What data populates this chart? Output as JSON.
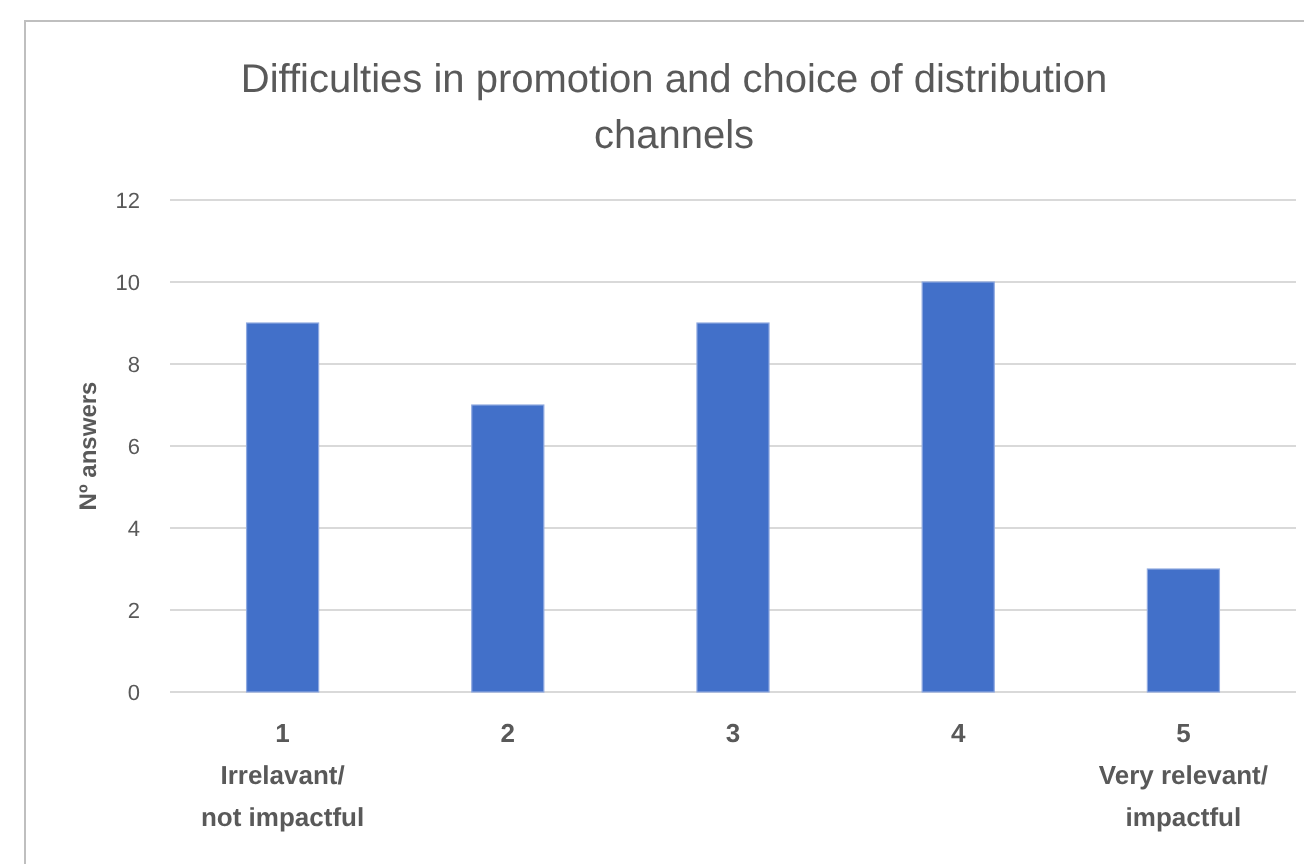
{
  "chart_data": {
    "type": "bar",
    "title": "Difficulties in promotion and choice of distribution channels",
    "ylabel": "Nº answers",
    "categories": [
      "1",
      "2",
      "3",
      "4",
      "5"
    ],
    "values": [
      9,
      7,
      9,
      10,
      3
    ],
    "color": "#4270c9",
    "ylim": [
      0,
      12
    ],
    "yticks": [
      0,
      2,
      4,
      6,
      8,
      10,
      12
    ],
    "grid": "y",
    "annotations": [
      "Irrelavant/ not impactful",
      "Very relevant/ impactful"
    ]
  }
}
